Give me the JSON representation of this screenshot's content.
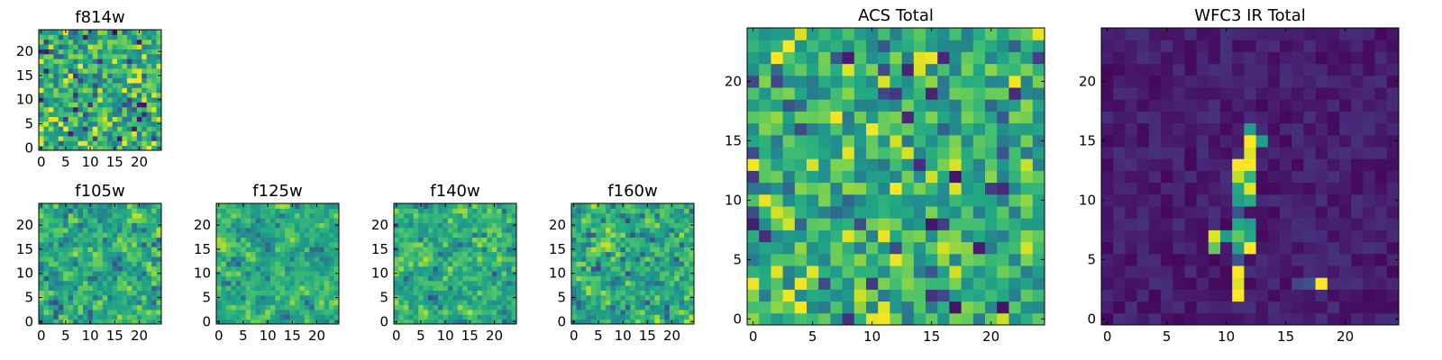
{
  "chart_data": [
    {
      "id": "f814w",
      "type": "heatmap",
      "title": "f814w",
      "rows": 25,
      "cols": 25,
      "colormap": "viridis",
      "smooth": 0,
      "seed": 11,
      "xticks": [
        0,
        5,
        10,
        15,
        20
      ],
      "yticks": [
        0,
        5,
        10,
        15,
        20
      ],
      "xlim": [
        -0.5,
        24.5
      ],
      "ylim": [
        -0.5,
        24.5
      ]
    },
    {
      "id": "f105w",
      "type": "heatmap",
      "title": "f105w",
      "rows": 25,
      "cols": 25,
      "colormap": "viridis",
      "smooth": 0.45,
      "seed": 23,
      "xticks": [
        0,
        5,
        10,
        15,
        20
      ],
      "yticks": [
        0,
        5,
        10,
        15,
        20
      ],
      "xlim": [
        -0.5,
        24.5
      ],
      "ylim": [
        -0.5,
        24.5
      ]
    },
    {
      "id": "f125w",
      "type": "heatmap",
      "title": "f125w",
      "rows": 25,
      "cols": 25,
      "colormap": "viridis",
      "smooth": 0.55,
      "seed": 37,
      "xticks": [
        0,
        5,
        10,
        15,
        20
      ],
      "yticks": [
        0,
        5,
        10,
        15,
        20
      ],
      "xlim": [
        -0.5,
        24.5
      ],
      "ylim": [
        -0.5,
        24.5
      ]
    },
    {
      "id": "f140w",
      "type": "heatmap",
      "title": "f140w",
      "rows": 25,
      "cols": 25,
      "colormap": "viridis",
      "smooth": 0.45,
      "seed": 41,
      "xticks": [
        0,
        5,
        10,
        15,
        20
      ],
      "yticks": [
        0,
        5,
        10,
        15,
        20
      ],
      "xlim": [
        -0.5,
        24.5
      ],
      "ylim": [
        -0.5,
        24.5
      ]
    },
    {
      "id": "f160w",
      "type": "heatmap",
      "title": "f160w",
      "rows": 25,
      "cols": 25,
      "colormap": "viridis",
      "smooth": 0.4,
      "seed": 53,
      "xticks": [
        0,
        5,
        10,
        15,
        20
      ],
      "yticks": [
        0,
        5,
        10,
        15,
        20
      ],
      "xlim": [
        -0.5,
        24.5
      ],
      "ylim": [
        -0.5,
        24.5
      ]
    },
    {
      "id": "acs_total",
      "type": "heatmap",
      "title": "ACS Total",
      "rows": 25,
      "cols": 25,
      "colormap": "viridis",
      "smooth": 0,
      "seed": 67,
      "xticks": [
        0,
        5,
        10,
        15,
        20
      ],
      "yticks": [
        0,
        5,
        10,
        15,
        20
      ],
      "xlim": [
        -0.5,
        24.5
      ],
      "ylim": [
        -0.5,
        24.5
      ]
    },
    {
      "id": "wfc3_ir_total",
      "type": "heatmap",
      "title": "WFC3 IR Total",
      "rows": 25,
      "cols": 25,
      "colormap": "viridis",
      "seed": 79,
      "xticks": [
        0,
        5,
        10,
        15,
        20
      ],
      "yticks": [
        0,
        5,
        10,
        15,
        20
      ],
      "xlim": [
        -0.5,
        24.5
      ],
      "ylim": [
        -0.5,
        24.5
      ],
      "background_level": [
        0.02,
        0.14
      ],
      "bright_pixels": [
        {
          "x": 12,
          "y": 16,
          "v": 0.55
        },
        {
          "x": 12,
          "y": 15,
          "v": 1.0
        },
        {
          "x": 13,
          "y": 15,
          "v": 0.55
        },
        {
          "x": 12,
          "y": 14,
          "v": 0.95
        },
        {
          "x": 11,
          "y": 13,
          "v": 1.0
        },
        {
          "x": 12,
          "y": 13,
          "v": 1.0
        },
        {
          "x": 11,
          "y": 12,
          "v": 0.9
        },
        {
          "x": 12,
          "y": 12,
          "v": 0.65
        },
        {
          "x": 11,
          "y": 11,
          "v": 0.6
        },
        {
          "x": 12,
          "y": 11,
          "v": 0.95
        },
        {
          "x": 11,
          "y": 10,
          "v": 0.55
        },
        {
          "x": 12,
          "y": 10,
          "v": 0.62
        },
        {
          "x": 11,
          "y": 9,
          "v": 0.25
        },
        {
          "x": 11,
          "y": 8,
          "v": 0.6
        },
        {
          "x": 12,
          "y": 8,
          "v": 0.55
        },
        {
          "x": 9,
          "y": 7,
          "v": 0.95
        },
        {
          "x": 10,
          "y": 7,
          "v": 0.55
        },
        {
          "x": 11,
          "y": 7,
          "v": 0.75
        },
        {
          "x": 12,
          "y": 7,
          "v": 0.6
        },
        {
          "x": 9,
          "y": 6,
          "v": 0.75
        },
        {
          "x": 11,
          "y": 6,
          "v": 0.55
        },
        {
          "x": 12,
          "y": 6,
          "v": 1.0
        },
        {
          "x": 11,
          "y": 5,
          "v": 0.25
        },
        {
          "x": 11,
          "y": 4,
          "v": 1.0
        },
        {
          "x": 11,
          "y": 3,
          "v": 0.95
        },
        {
          "x": 11,
          "y": 2,
          "v": 1.0
        },
        {
          "x": 18,
          "y": 3,
          "v": 1.0
        },
        {
          "x": 17,
          "y": 3,
          "v": 0.25
        },
        {
          "x": 16,
          "y": 3,
          "v": 0.2
        }
      ]
    }
  ]
}
